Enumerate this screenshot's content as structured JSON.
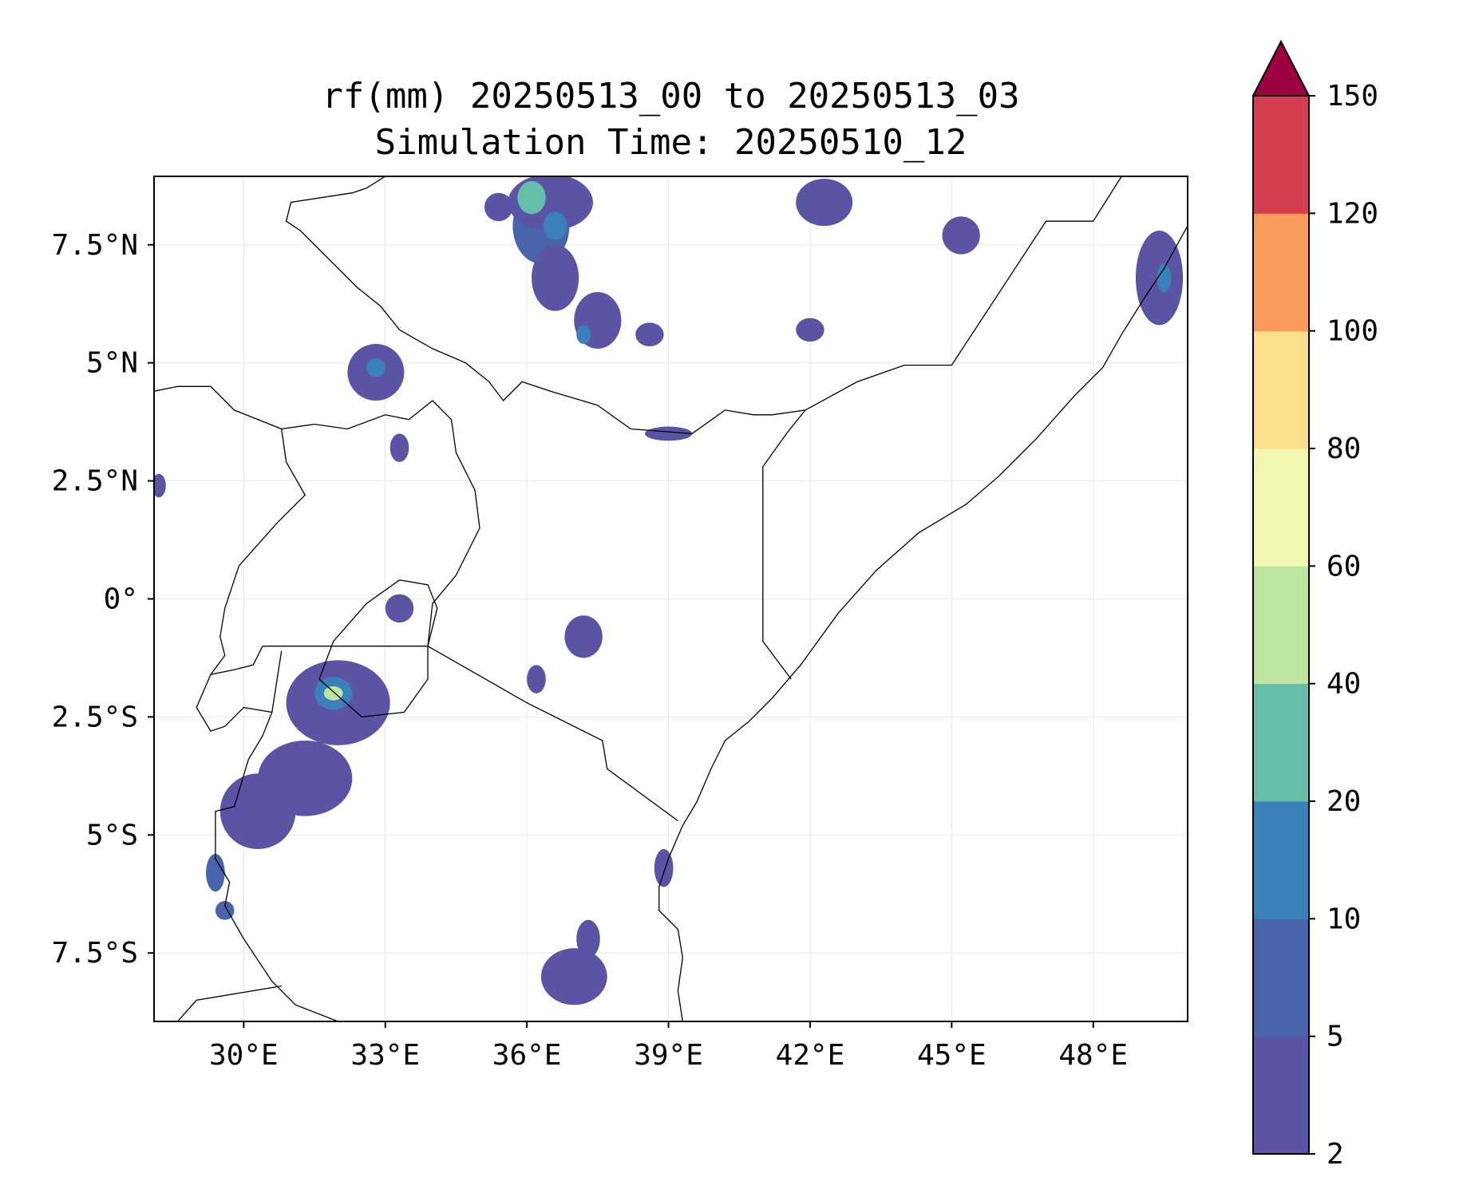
{
  "figure": {
    "title_line1": "rf(mm) 20250513_00 to 20250513_03",
    "title_line2": "Simulation Time: 20250510_12"
  },
  "map": {
    "lon_range": [
      28.1,
      50.0
    ],
    "lat_range": [
      -8.95,
      8.95
    ],
    "x_ticks": [
      {
        "value": 30,
        "label": "30°E"
      },
      {
        "value": 33,
        "label": "33°E"
      },
      {
        "value": 36,
        "label": "36°E"
      },
      {
        "value": 39,
        "label": "39°E"
      },
      {
        "value": 42,
        "label": "42°E"
      },
      {
        "value": 45,
        "label": "45°E"
      },
      {
        "value": 48,
        "label": "48°E"
      }
    ],
    "y_ticks": [
      {
        "value": 7.5,
        "label": "7.5°N"
      },
      {
        "value": 5,
        "label": "5°N"
      },
      {
        "value": 2.5,
        "label": "2.5°N"
      },
      {
        "value": 0,
        "label": "0°"
      },
      {
        "value": -2.5,
        "label": "2.5°S"
      },
      {
        "value": -5,
        "label": "5°S"
      },
      {
        "value": -7.5,
        "label": "7.5°S"
      }
    ],
    "gridlines": true,
    "coastline": [
      [
        50.0,
        7.9
      ],
      [
        49.5,
        7.0
      ],
      [
        49.1,
        6.4
      ],
      [
        48.6,
        5.6
      ],
      [
        48.2,
        4.9
      ],
      [
        47.6,
        4.3
      ],
      [
        46.8,
        3.4
      ],
      [
        46.0,
        2.6
      ],
      [
        45.3,
        2.0
      ],
      [
        44.3,
        1.4
      ],
      [
        43.4,
        0.6
      ],
      [
        42.6,
        -0.3
      ],
      [
        41.8,
        -1.4
      ],
      [
        41.2,
        -2.1
      ],
      [
        40.7,
        -2.6
      ],
      [
        40.2,
        -3.0
      ],
      [
        39.9,
        -3.6
      ],
      [
        39.6,
        -4.3
      ],
      [
        39.3,
        -4.8
      ],
      [
        39.0,
        -5.5
      ],
      [
        38.8,
        -6.1
      ],
      [
        38.8,
        -6.6
      ],
      [
        39.2,
        -7.0
      ],
      [
        39.3,
        -7.6
      ],
      [
        39.2,
        -8.3
      ],
      [
        39.3,
        -8.95
      ]
    ],
    "borders": [
      [
        [
          33.0,
          8.95
        ],
        [
          32.6,
          8.7
        ],
        [
          32.3,
          8.6
        ],
        [
          31.0,
          8.4
        ],
        [
          30.9,
          8.0
        ],
        [
          31.2,
          7.8
        ],
        [
          31.8,
          7.2
        ],
        [
          32.4,
          6.6
        ],
        [
          32.9,
          6.2
        ],
        [
          33.3,
          5.7
        ],
        [
          34.0,
          5.3
        ],
        [
          34.7,
          5.0
        ],
        [
          35.2,
          4.6
        ],
        [
          35.5,
          4.2
        ],
        [
          35.9,
          4.6
        ],
        [
          36.5,
          4.4
        ],
        [
          37.5,
          4.1
        ],
        [
          38.2,
          3.6
        ],
        [
          39.5,
          3.5
        ],
        [
          40.2,
          4.0
        ],
        [
          40.8,
          3.9
        ],
        [
          41.2,
          3.9
        ],
        [
          41.9,
          4.0
        ],
        [
          43.0,
          4.6
        ],
        [
          44.0,
          4.95
        ],
        [
          45.0,
          4.95
        ],
        [
          47.0,
          8.0
        ],
        [
          48.0,
          8.0
        ],
        [
          48.6,
          8.95
        ]
      ],
      [
        [
          41.9,
          4.0
        ],
        [
          41.5,
          3.5
        ],
        [
          41.0,
          2.8
        ],
        [
          41.0,
          -0.9
        ],
        [
          41.6,
          -1.7
        ]
      ],
      [
        [
          34.0,
          4.2
        ],
        [
          34.4,
          3.8
        ],
        [
          34.5,
          3.1
        ],
        [
          34.9,
          2.3
        ],
        [
          35.0,
          1.5
        ],
        [
          34.5,
          0.5
        ],
        [
          34.0,
          -0.1
        ],
        [
          33.9,
          -1.0
        ]
      ],
      [
        [
          33.9,
          -1.0
        ],
        [
          36.0,
          -2.2
        ],
        [
          37.6,
          -3.0
        ],
        [
          37.7,
          -3.6
        ],
        [
          39.2,
          -4.7
        ]
      ],
      [
        [
          33.9,
          -1.0
        ],
        [
          30.4,
          -1.0
        ]
      ],
      [
        [
          30.4,
          -1.0
        ],
        [
          30.2,
          -1.4
        ],
        [
          29.8,
          -1.5
        ],
        [
          29.3,
          -1.6
        ],
        [
          29.0,
          -2.3
        ],
        [
          29.3,
          -2.8
        ],
        [
          29.6,
          -2.7
        ],
        [
          30.0,
          -2.3
        ],
        [
          30.6,
          -2.4
        ],
        [
          30.8,
          -1.1
        ]
      ],
      [
        [
          30.6,
          -2.4
        ],
        [
          30.4,
          -2.9
        ],
        [
          30.1,
          -3.4
        ],
        [
          29.8,
          -4.4
        ],
        [
          29.4,
          -4.5
        ],
        [
          29.4,
          -5.5
        ],
        [
          29.7,
          -6.0
        ],
        [
          29.6,
          -6.5
        ],
        [
          30.0,
          -7.2
        ],
        [
          30.6,
          -8.1
        ],
        [
          31.1,
          -8.6
        ],
        [
          32.0,
          -8.95
        ]
      ],
      [
        [
          28.1,
          4.4
        ],
        [
          28.6,
          4.5
        ],
        [
          29.3,
          4.5
        ],
        [
          29.8,
          4.0
        ],
        [
          30.8,
          3.6
        ],
        [
          30.9,
          2.9
        ],
        [
          31.3,
          2.2
        ],
        [
          30.7,
          1.6
        ],
        [
          29.9,
          0.7
        ],
        [
          29.6,
          -0.2
        ],
        [
          29.5,
          -0.8
        ],
        [
          29.6,
          -1.2
        ],
        [
          29.3,
          -1.6
        ]
      ],
      [
        [
          30.8,
          3.6
        ],
        [
          31.5,
          3.7
        ],
        [
          32.2,
          3.6
        ],
        [
          33.0,
          3.9
        ],
        [
          33.5,
          3.8
        ],
        [
          34.0,
          4.2
        ]
      ],
      [
        [
          30.8,
          -8.2
        ],
        [
          29.0,
          -8.5
        ],
        [
          28.6,
          -8.95
        ]
      ]
    ],
    "lake_victoria": [
      [
        33.9,
        -1.0
      ],
      [
        34.1,
        -0.2
      ],
      [
        33.9,
        0.3
      ],
      [
        33.3,
        0.4
      ],
      [
        32.6,
        -0.1
      ],
      [
        31.9,
        -0.9
      ],
      [
        31.6,
        -1.7
      ],
      [
        32.5,
        -2.5
      ],
      [
        33.4,
        -2.4
      ],
      [
        33.9,
        -1.7
      ]
    ]
  },
  "rain_cells": [
    {
      "lon": 36.3,
      "lat": 7.9,
      "rx": 0.6,
      "ry": 0.8,
      "level": 2
    },
    {
      "lon": 36.5,
      "lat": 8.4,
      "rx": 0.9,
      "ry": 0.6,
      "level": 1
    },
    {
      "lon": 36.1,
      "lat": 8.5,
      "rx": 0.3,
      "ry": 0.35,
      "level": 4
    },
    {
      "lon": 36.6,
      "lat": 7.9,
      "rx": 0.25,
      "ry": 0.3,
      "level": 3
    },
    {
      "lon": 36.6,
      "lat": 6.8,
      "rx": 0.5,
      "ry": 0.7,
      "level": 1
    },
    {
      "lon": 37.5,
      "lat": 5.9,
      "rx": 0.5,
      "ry": 0.6,
      "level": 1
    },
    {
      "lon": 37.2,
      "lat": 5.6,
      "rx": 0.15,
      "ry": 0.2,
      "level": 3
    },
    {
      "lon": 35.4,
      "lat": 8.3,
      "rx": 0.3,
      "ry": 0.3,
      "level": 1
    },
    {
      "lon": 42.3,
      "lat": 8.4,
      "rx": 0.6,
      "ry": 0.5,
      "level": 1
    },
    {
      "lon": 45.2,
      "lat": 7.7,
      "rx": 0.4,
      "ry": 0.4,
      "level": 1
    },
    {
      "lon": 42.0,
      "lat": 5.7,
      "rx": 0.3,
      "ry": 0.25,
      "level": 1
    },
    {
      "lon": 38.6,
      "lat": 5.6,
      "rx": 0.3,
      "ry": 0.25,
      "level": 1
    },
    {
      "lon": 32.8,
      "lat": 4.8,
      "rx": 0.6,
      "ry": 0.6,
      "level": 1
    },
    {
      "lon": 32.8,
      "lat": 4.9,
      "rx": 0.2,
      "ry": 0.2,
      "level": 3
    },
    {
      "lon": 39.0,
      "lat": 3.5,
      "rx": 0.5,
      "ry": 0.15,
      "level": 1
    },
    {
      "lon": 33.3,
      "lat": 3.2,
      "rx": 0.2,
      "ry": 0.3,
      "level": 1
    },
    {
      "lon": 49.4,
      "lat": 6.8,
      "rx": 0.5,
      "ry": 1.0,
      "level": 1
    },
    {
      "lon": 49.5,
      "lat": 6.8,
      "rx": 0.15,
      "ry": 0.3,
      "level": 3
    },
    {
      "lon": 37.2,
      "lat": -0.8,
      "rx": 0.4,
      "ry": 0.45,
      "level": 1
    },
    {
      "lon": 36.2,
      "lat": -1.7,
      "rx": 0.2,
      "ry": 0.3,
      "level": 1
    },
    {
      "lon": 33.3,
      "lat": -0.2,
      "rx": 0.3,
      "ry": 0.3,
      "level": 1
    },
    {
      "lon": 32.0,
      "lat": -2.2,
      "rx": 1.1,
      "ry": 0.9,
      "level": 1
    },
    {
      "lon": 31.9,
      "lat": -2.0,
      "rx": 0.4,
      "ry": 0.35,
      "level": 3
    },
    {
      "lon": 31.9,
      "lat": -2.0,
      "rx": 0.2,
      "ry": 0.15,
      "level": 5
    },
    {
      "lon": 31.3,
      "lat": -3.8,
      "rx": 1.0,
      "ry": 0.8,
      "level": 1
    },
    {
      "lon": 30.3,
      "lat": -4.5,
      "rx": 0.8,
      "ry": 0.8,
      "level": 1
    },
    {
      "lon": 29.4,
      "lat": -5.8,
      "rx": 0.2,
      "ry": 0.4,
      "level": 2
    },
    {
      "lon": 29.6,
      "lat": -6.6,
      "rx": 0.2,
      "ry": 0.2,
      "level": 2
    },
    {
      "lon": 37.0,
      "lat": -8.0,
      "rx": 0.7,
      "ry": 0.6,
      "level": 1
    },
    {
      "lon": 37.3,
      "lat": -7.2,
      "rx": 0.25,
      "ry": 0.4,
      "level": 1
    },
    {
      "lon": 38.9,
      "lat": -5.7,
      "rx": 0.2,
      "ry": 0.4,
      "level": 1
    },
    {
      "lon": 28.2,
      "lat": 2.4,
      "rx": 0.15,
      "ry": 0.25,
      "level": 1
    }
  ],
  "colorbar": {
    "boundaries": [
      2,
      5,
      10,
      20,
      40,
      60,
      80,
      100,
      120,
      150
    ],
    "labels": [
      "2",
      "5",
      "10",
      "20",
      "40",
      "60",
      "80",
      "100",
      "120",
      "150"
    ],
    "colors": [
      "#5b53a4",
      "#4a64ac",
      "#3a80b9",
      "#64bea8",
      "#bde4a0",
      "#f3f8b0",
      "#fbdd8c",
      "#f99b5c",
      "#d53e4f"
    ],
    "extend_color": "#9e0142",
    "extend": "max"
  }
}
